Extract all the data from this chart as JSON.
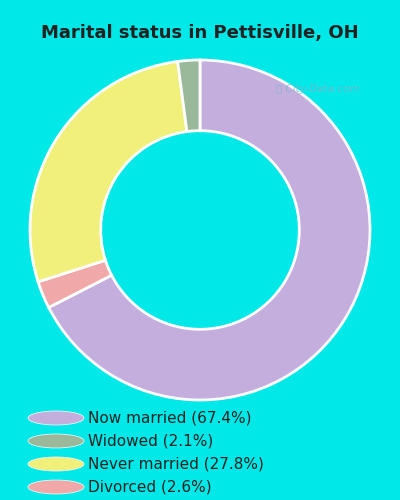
{
  "title": "Marital status in Pettisville, OH",
  "slices": [
    67.4,
    2.1,
    27.8,
    2.6
  ],
  "labels": [
    "Now married (67.4%)",
    "Widowed (2.1%)",
    "Never married (27.8%)",
    "Divorced (2.6%)"
  ],
  "colors": [
    "#c4aedd",
    "#9ab89a",
    "#f0f07a",
    "#f0a8a8"
  ],
  "bg_cyan": "#00e8e8",
  "bg_chart": "#d0ead8",
  "watermark": "City-Data.com",
  "title_fontsize": 13,
  "legend_fontsize": 11,
  "title_color": "#222222",
  "donut_width": 0.52
}
